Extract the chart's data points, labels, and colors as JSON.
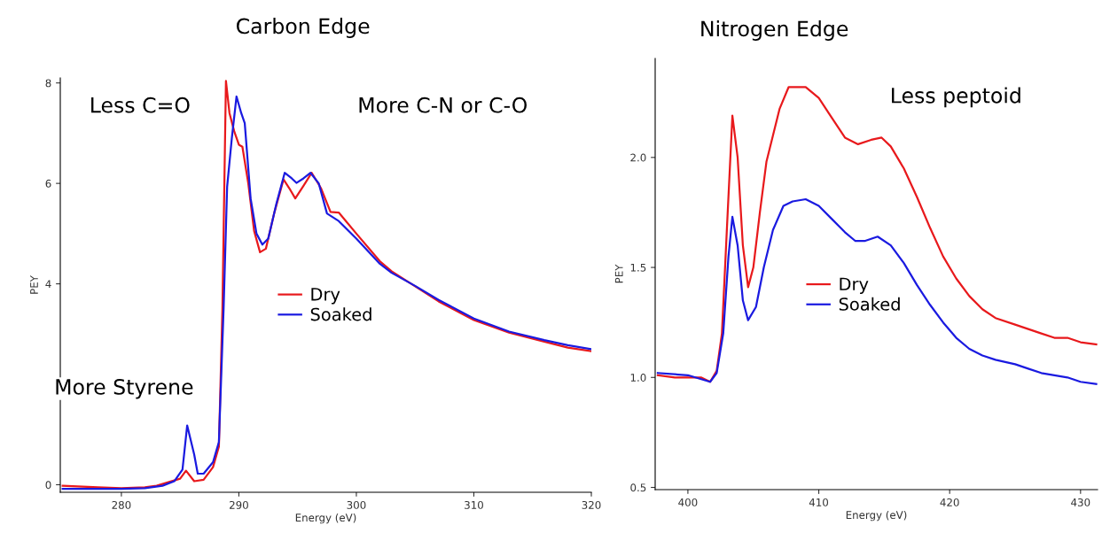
{
  "chart_data": [
    {
      "type": "line",
      "title": "Carbon Edge",
      "xlabel": "Energy (eV)",
      "ylabel": "PEY",
      "xlim": [
        274.8,
        320
      ],
      "xticks": [
        280,
        290,
        300,
        310,
        320
      ],
      "ylim": [
        -0.15,
        8.1
      ],
      "yticks": [
        0,
        {
          "value": 2,
          "label": null
        },
        4,
        6,
        8
      ],
      "tick_labels": "xy",
      "legend": "center",
      "grid": false,
      "annotations": [
        "Less C=O",
        "More C-N or C-O",
        "More Styrene"
      ],
      "series": [
        {
          "name": "Dry",
          "color": "#e8191c",
          "x": [
            275,
            278,
            280,
            282,
            283,
            284,
            285,
            285.5,
            286.2,
            287,
            287.8,
            288.3,
            288.6,
            288.9,
            289.2,
            289.6,
            290,
            290.3,
            290.8,
            291.3,
            291.8,
            292.3,
            293,
            293.8,
            294.3,
            294.8,
            295.5,
            296.2,
            297,
            297.8,
            298.5,
            300,
            302,
            303,
            305,
            307,
            310,
            313,
            316,
            318,
            320
          ],
          "values": [
            -0.02,
            -0.05,
            -0.07,
            -0.05,
            -0.02,
            0.05,
            0.12,
            0.28,
            0.07,
            0.1,
            0.35,
            0.76,
            3.5,
            8.04,
            7.4,
            7.04,
            6.77,
            6.73,
            6.0,
            5.05,
            4.63,
            4.7,
            5.4,
            6.08,
            5.9,
            5.7,
            5.95,
            6.21,
            5.9,
            5.43,
            5.42,
            5.0,
            4.45,
            4.25,
            3.95,
            3.65,
            3.28,
            3.03,
            2.85,
            2.73,
            2.66
          ]
        },
        {
          "name": "Soaked",
          "color": "#1a1ae0",
          "x": [
            275,
            280,
            282,
            283.5,
            284.5,
            285.2,
            285.6,
            286.2,
            286.5,
            287,
            287.8,
            288.3,
            288.7,
            289,
            289.4,
            289.8,
            290.2,
            290.5,
            291,
            291.5,
            292,
            292.5,
            293.2,
            293.9,
            294.5,
            294.9,
            295.5,
            296.1,
            296.8,
            297.5,
            298.5,
            300,
            302,
            303,
            305,
            307,
            310,
            313,
            316,
            318,
            320
          ],
          "values": [
            -0.08,
            -0.08,
            -0.07,
            -0.02,
            0.07,
            0.3,
            1.18,
            0.6,
            0.22,
            0.22,
            0.45,
            0.85,
            3.5,
            5.93,
            6.9,
            7.73,
            7.4,
            7.2,
            5.7,
            5.0,
            4.78,
            4.9,
            5.6,
            6.21,
            6.1,
            6.01,
            6.1,
            6.21,
            6.0,
            5.4,
            5.25,
            4.9,
            4.4,
            4.22,
            3.96,
            3.68,
            3.31,
            3.05,
            2.88,
            2.78,
            2.7
          ]
        }
      ]
    },
    {
      "type": "line",
      "title": "Nitrogen Edge",
      "xlabel": "Energy (eV)",
      "ylabel": "PEY",
      "xlim": [
        397.5,
        431.3
      ],
      "xticks": [
        400,
        410,
        420,
        430
      ],
      "ylim": [
        0.49,
        2.45
      ],
      "yticks": [
        {
          "value": 0.5,
          "label": "0.5"
        },
        {
          "value": 1.0,
          "label": "1.0"
        },
        {
          "value": 1.5,
          "label": "1.5"
        },
        {
          "value": 2.0,
          "label": "2.0"
        }
      ],
      "legend": "center",
      "grid": false,
      "annotations": [
        "Less peptoid"
      ],
      "series": [
        {
          "name": "Dry",
          "color": "#e8191c",
          "x": [
            397.7,
            399,
            400,
            401,
            401.7,
            402.2,
            402.6,
            403,
            403.4,
            403.8,
            404.2,
            404.6,
            405,
            405.5,
            406,
            406.5,
            407,
            407.7,
            409,
            410,
            411,
            412,
            413,
            414,
            414.8,
            415.5,
            416.5,
            417.5,
            418.5,
            419.5,
            420.5,
            421.5,
            422.5,
            423.5,
            425,
            426,
            427,
            428,
            429,
            430,
            431.2
          ],
          "values": [
            1.01,
            1.0,
            1.0,
            1.0,
            0.98,
            1.03,
            1.2,
            1.7,
            2.19,
            2.0,
            1.6,
            1.41,
            1.5,
            1.75,
            1.98,
            2.1,
            2.22,
            2.32,
            2.32,
            2.27,
            2.18,
            2.09,
            2.06,
            2.08,
            2.09,
            2.05,
            1.95,
            1.82,
            1.68,
            1.55,
            1.45,
            1.37,
            1.31,
            1.27,
            1.24,
            1.22,
            1.2,
            1.18,
            1.18,
            1.16,
            1.15
          ]
        },
        {
          "name": "Soaked",
          "color": "#1a1ae0",
          "x": [
            397.7,
            400,
            401.7,
            402.2,
            402.7,
            403.1,
            403.4,
            403.8,
            404.2,
            404.6,
            405.2,
            405.8,
            406.5,
            407.3,
            408,
            409,
            410,
            411,
            412,
            412.8,
            413.5,
            414.5,
            415.5,
            416.5,
            417.5,
            418.5,
            419.5,
            420.5,
            421.5,
            422.5,
            423.5,
            425,
            426,
            427,
            428,
            429,
            430,
            431.2
          ],
          "values": [
            1.02,
            1.01,
            0.98,
            1.02,
            1.2,
            1.55,
            1.73,
            1.6,
            1.35,
            1.26,
            1.32,
            1.5,
            1.67,
            1.78,
            1.8,
            1.81,
            1.78,
            1.72,
            1.66,
            1.62,
            1.62,
            1.64,
            1.6,
            1.52,
            1.42,
            1.33,
            1.25,
            1.18,
            1.13,
            1.1,
            1.08,
            1.06,
            1.04,
            1.02,
            1.01,
            1.0,
            0.98,
            0.97
          ]
        }
      ]
    }
  ]
}
